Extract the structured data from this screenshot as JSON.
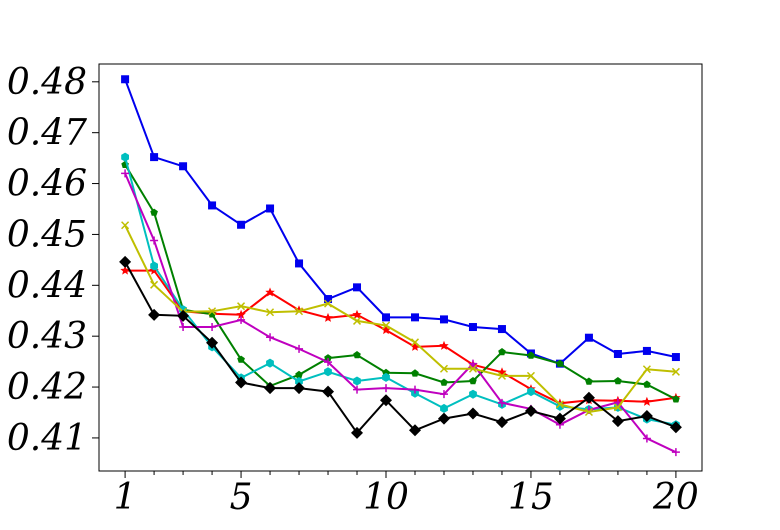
{
  "chart_data": {
    "type": "line",
    "title": "",
    "xlabel": "",
    "ylabel": "",
    "x": [
      1,
      2,
      3,
      4,
      5,
      6,
      7,
      8,
      9,
      10,
      11,
      12,
      13,
      14,
      15,
      16,
      17,
      18,
      19,
      20
    ],
    "xlim": [
      0.1,
      20.9
    ],
    "ylim": [
      0.4035,
      0.4835
    ],
    "x_ticks": [
      1,
      5,
      10,
      15,
      20
    ],
    "y_ticks": [
      0.41,
      0.42,
      0.43,
      0.44,
      0.45,
      0.46,
      0.47,
      0.48
    ],
    "y_tick_labels": [
      "0.41",
      "0.42",
      "0.43",
      "0.44",
      "0.45",
      "0.46",
      "0.47",
      "0.48"
    ],
    "grid": false,
    "legend": "none",
    "series": [
      {
        "color": "#0000ee",
        "marker": "square",
        "values": [
          0.4805,
          0.4652,
          0.4634,
          0.4557,
          0.4519,
          0.4551,
          0.4443,
          0.4373,
          0.4396,
          0.4337,
          0.4337,
          0.4333,
          0.4318,
          0.4314,
          0.4266,
          0.4246,
          0.4297,
          0.4265,
          0.4271,
          0.4259
        ]
      },
      {
        "color": "#ff0000",
        "marker": "star",
        "values": [
          0.4429,
          0.4429,
          0.4349,
          0.4344,
          0.4342,
          0.4386,
          0.4351,
          0.4336,
          0.4342,
          0.4312,
          0.4279,
          0.4281,
          0.4244,
          0.4229,
          0.4196,
          0.4168,
          0.4174,
          0.4173,
          0.4171,
          0.4179
        ]
      },
      {
        "color": "#008000",
        "marker": "pentagon",
        "values": [
          0.4637,
          0.4543,
          0.4352,
          0.4343,
          0.4254,
          0.4202,
          0.4224,
          0.4257,
          0.4263,
          0.4228,
          0.4227,
          0.4209,
          0.4212,
          0.4269,
          0.4262,
          0.4246,
          0.4211,
          0.4212,
          0.4205,
          0.4176
        ]
      },
      {
        "color": "#00bfbf",
        "marker": "hexagon",
        "values": [
          0.4652,
          0.4438,
          0.4352,
          0.4279,
          0.4218,
          0.4247,
          0.4211,
          0.423,
          0.4212,
          0.4219,
          0.4188,
          0.4158,
          0.4186,
          0.4166,
          0.4191,
          0.4162,
          0.4156,
          0.416,
          0.4137,
          0.4126
        ]
      },
      {
        "color": "#bf00bf",
        "marker": "plus",
        "values": [
          0.462,
          0.4488,
          0.4318,
          0.4318,
          0.4332,
          0.4298,
          0.4275,
          0.4249,
          0.4195,
          0.4198,
          0.4195,
          0.4186,
          0.4246,
          0.4169,
          0.4157,
          0.4126,
          0.4155,
          0.417,
          0.4099,
          0.4072
        ]
      },
      {
        "color": "#bfbf00",
        "marker": "x",
        "values": [
          0.4518,
          0.4401,
          0.4348,
          0.4349,
          0.4359,
          0.4347,
          0.4349,
          0.4364,
          0.433,
          0.4321,
          0.4288,
          0.4236,
          0.4236,
          0.4222,
          0.4222,
          0.4166,
          0.4151,
          0.416,
          0.4235,
          0.423
        ]
      },
      {
        "color": "#000000",
        "marker": "diamond",
        "values": [
          0.4446,
          0.4342,
          0.434,
          0.4287,
          0.4209,
          0.4198,
          0.4198,
          0.4191,
          0.411,
          0.4174,
          0.4115,
          0.4138,
          0.4148,
          0.4131,
          0.4153,
          0.4138,
          0.4179,
          0.4133,
          0.4143,
          0.4121
        ]
      }
    ]
  }
}
